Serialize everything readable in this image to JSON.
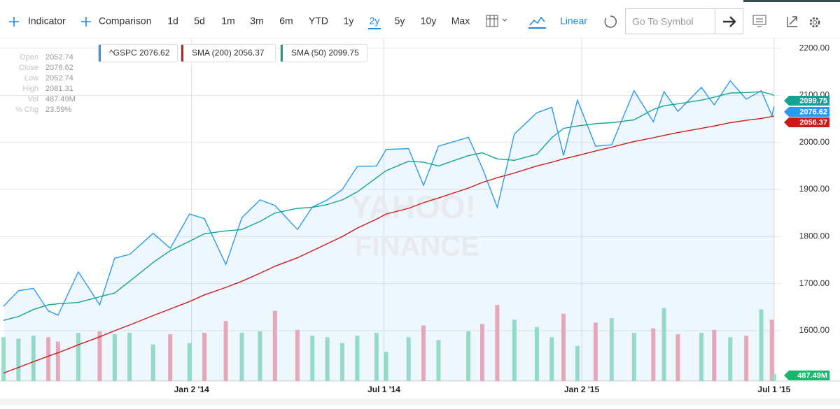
{
  "toolbar": {
    "indicator": "Indicator",
    "comparison": "Comparison",
    "ranges": [
      "1d",
      "5d",
      "1m",
      "3m",
      "6m",
      "YTD",
      "1y",
      "2y",
      "5y",
      "10y",
      "Max"
    ],
    "active_range": 7,
    "scale": "Linear",
    "search_placeholder": "Go To Symbol"
  },
  "info_panel": [
    {
      "label": "Open",
      "value": 2052.74
    },
    {
      "label": "Close",
      "value": 2076.62
    },
    {
      "label": "Low",
      "value": 2052.74
    },
    {
      "label": "High",
      "value": 2081.31
    },
    {
      "label": "Vol",
      "value": {
        "value": 487.49,
        "label": "487.49M"
      }
    },
    {
      "label": "% Chg",
      "value": {
        "value": 23.59,
        "label": "23.59%"
      }
    }
  ],
  "watermark": [
    "YAHOO!",
    "FINANCE"
  ],
  "chart_data": {
    "type": "line",
    "x": [
      "2013-07-10",
      "2013-07-24",
      "2013-08-07",
      "2013-08-21",
      "2013-08-30",
      "2013-09-18",
      "2013-10-08",
      "2013-10-22",
      "2013-11-05",
      "2013-11-27",
      "2013-12-13",
      "2013-12-31",
      "2014-01-14",
      "2014-02-03",
      "2014-02-18",
      "2014-03-07",
      "2014-03-21",
      "2014-04-11",
      "2014-04-25",
      "2014-05-09",
      "2014-05-23",
      "2014-06-06",
      "2014-06-24",
      "2014-07-03",
      "2014-07-24",
      "2014-08-07",
      "2014-08-21",
      "2014-09-18",
      "2014-10-01",
      "2014-10-15",
      "2014-10-31",
      "2014-11-21",
      "2014-12-05",
      "2014-12-16",
      "2014-12-29",
      "2015-01-15",
      "2015-01-30",
      "2015-02-20",
      "2015-03-10",
      "2015-03-20",
      "2015-04-02",
      "2015-04-24",
      "2015-05-06",
      "2015-05-21",
      "2015-06-05",
      "2015-06-19",
      "2015-06-29",
      "2015-07-01"
    ],
    "series": [
      {
        "name": "^GSPC",
        "color": "#2a9af0",
        "area": true,
        "values": [
          1652,
          1685,
          1690,
          1642,
          1633,
          1725,
          1655,
          1754,
          1762,
          1807,
          1775,
          1848,
          1838,
          1741,
          1840,
          1878,
          1866,
          1815,
          1863,
          1878,
          1900,
          1949,
          1950,
          1985,
          1987,
          1909,
          1992,
          2011,
          1946,
          1862,
          2018,
          2063,
          2075,
          1972,
          2090,
          1992,
          1995,
          2110,
          2044,
          2108,
          2066,
          2117,
          2080,
          2131,
          2092,
          2110,
          2057,
          2076.62
        ]
      },
      {
        "name": "SMA (200)",
        "color": "#cc1a1a",
        "values": [
          1510,
          1522,
          1534,
          1546,
          1553,
          1570,
          1587,
          1600,
          1612,
          1632,
          1646,
          1662,
          1676,
          1692,
          1705,
          1722,
          1737,
          1755,
          1770,
          1785,
          1800,
          1818,
          1837,
          1848,
          1860,
          1872,
          1882,
          1903,
          1915,
          1925,
          1935,
          1950,
          1958,
          1965,
          1972,
          1982,
          1990,
          2002,
          2010,
          2015,
          2021,
          2030,
          2035,
          2042,
          2047,
          2051,
          2055,
          2056.37
        ]
      },
      {
        "name": "SMA (50)",
        "color": "#14a393",
        "values": [
          1622,
          1630,
          1645,
          1655,
          1657,
          1660,
          1672,
          1680,
          1705,
          1745,
          1770,
          1790,
          1806,
          1812,
          1815,
          1832,
          1850,
          1860,
          1862,
          1868,
          1878,
          1895,
          1925,
          1940,
          1960,
          1958,
          1950,
          1972,
          1978,
          1965,
          1962,
          1975,
          2010,
          2030,
          2035,
          2040,
          2042,
          2048,
          2070,
          2078,
          2082,
          2090,
          2096,
          2105,
          2106,
          2108,
          2102,
          2099.75
        ]
      }
    ],
    "volume": {
      "up_color": "#9de0c4",
      "down_color": "#f7a9b5",
      "badge_color": "#17b86e",
      "vlim": [
        0,
        5500
      ],
      "values": [
        3000,
        2900,
        3100,
        3000,
        2700,
        3300,
        3400,
        3200,
        3300,
        2500,
        3200,
        2600,
        3300,
        4100,
        3300,
        3400,
        4800,
        3500,
        3100,
        3000,
        2600,
        3100,
        3300,
        2000,
        3000,
        3800,
        2800,
        3400,
        3900,
        5200,
        4200,
        3700,
        3000,
        4600,
        2400,
        4000,
        4300,
        3300,
        3600,
        5000,
        3200,
        3300,
        3500,
        3000,
        3100,
        4900,
        4200,
        487.49
      ]
    },
    "xlim": [
      "2013-07-10",
      "2015-07-07"
    ],
    "xticks": [
      {
        "value": "2014-01-02",
        "label": "Jan 2 '14"
      },
      {
        "value": "2014-07-01",
        "label": "Jul 1 '14"
      },
      {
        "value": "2015-01-02",
        "label": "Jan 2 '15"
      },
      {
        "value": "2015-07-01",
        "label": "Jul 1 '15"
      }
    ],
    "ylim": [
      1493,
      2221
    ],
    "yticks": [
      {
        "value": 1600,
        "label": "1600.00"
      },
      {
        "value": 1700,
        "label": "1700.00"
      },
      {
        "value": 1800,
        "label": "1800.00"
      },
      {
        "value": 1900,
        "label": "1900.00"
      },
      {
        "value": 2000,
        "label": "2000.00"
      },
      {
        "value": 2100,
        "label": "2100.00"
      },
      {
        "value": 2200,
        "label": "2200.00"
      }
    ],
    "grid": true
  }
}
